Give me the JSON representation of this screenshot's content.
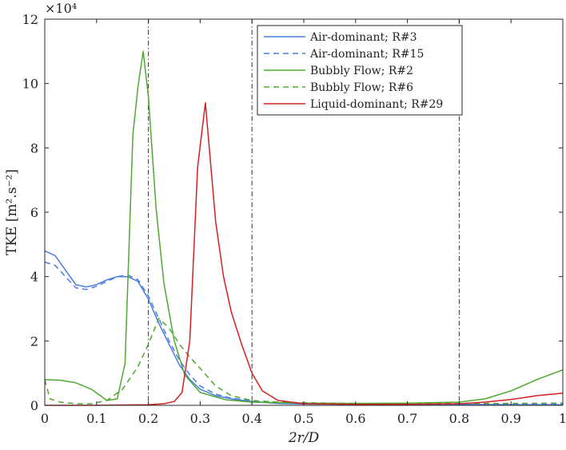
{
  "chart_data": {
    "type": "line",
    "xlabel": "2r/D",
    "ylabel": "TKE [m².s⁻²]",
    "y_multiplier_label": "×10⁴",
    "xlim": [
      0,
      1
    ],
    "ylim": [
      0,
      12
    ],
    "xticks": [
      0,
      0.1,
      0.2,
      0.3,
      0.4,
      0.5,
      0.6,
      0.7,
      0.8,
      0.9,
      1
    ],
    "xtick_labels": [
      "0",
      "0.1",
      "0.2",
      "0.3",
      "0.4",
      "0.5",
      "0.6",
      "0.7",
      "0.8",
      "0.9",
      "1"
    ],
    "yticks": [
      0,
      2,
      4,
      6,
      8,
      10,
      12
    ],
    "ytick_labels": [
      "0",
      "2",
      "4",
      "6",
      "8",
      "10",
      "12"
    ],
    "grid": false,
    "legend_position": "top-right",
    "vertical_lines": [
      0.2,
      0.4,
      0.8
    ],
    "series": [
      {
        "name": "Air-dominant; R#3",
        "color": "#4a7de0",
        "dash": "solid",
        "x": [
          0,
          0.02,
          0.04,
          0.06,
          0.08,
          0.1,
          0.12,
          0.14,
          0.16,
          0.18,
          0.2,
          0.22,
          0.24,
          0.26,
          0.28,
          0.3,
          0.33,
          0.36,
          0.4,
          0.45,
          0.5,
          0.6,
          0.7,
          0.8,
          0.9,
          1.0
        ],
        "y": [
          4.8,
          4.65,
          4.2,
          3.75,
          3.68,
          3.75,
          3.9,
          4.0,
          4.0,
          3.85,
          3.3,
          2.55,
          1.9,
          1.25,
          0.8,
          0.5,
          0.3,
          0.2,
          0.12,
          0.06,
          0.04,
          0.03,
          0.03,
          0.03,
          0.02,
          0.02
        ]
      },
      {
        "name": "Air-dominant; R#15",
        "color": "#4a7de0",
        "dash": "dashed",
        "x": [
          0,
          0.02,
          0.04,
          0.06,
          0.08,
          0.1,
          0.12,
          0.14,
          0.16,
          0.18,
          0.2,
          0.22,
          0.24,
          0.26,
          0.28,
          0.3,
          0.33,
          0.36,
          0.4,
          0.45,
          0.5,
          0.6,
          0.7,
          0.8,
          0.9,
          1.0
        ],
        "y": [
          4.45,
          4.35,
          4.0,
          3.65,
          3.6,
          3.7,
          3.85,
          4.0,
          4.05,
          3.9,
          3.4,
          2.7,
          2.0,
          1.4,
          0.95,
          0.6,
          0.35,
          0.22,
          0.14,
          0.07,
          0.05,
          0.04,
          0.03,
          0.03,
          0.03,
          0.03
        ]
      },
      {
        "name": "Bubbly Flow; R#2",
        "color": "#4fa832",
        "dash": "solid",
        "x": [
          0,
          0.03,
          0.06,
          0.09,
          0.12,
          0.14,
          0.155,
          0.17,
          0.18,
          0.19,
          0.2,
          0.215,
          0.23,
          0.25,
          0.27,
          0.3,
          0.35,
          0.4,
          0.5,
          0.6,
          0.7,
          0.8,
          0.85,
          0.9,
          0.95,
          1.0
        ],
        "y": [
          0.8,
          0.78,
          0.7,
          0.5,
          0.15,
          0.2,
          1.3,
          8.4,
          9.9,
          11.0,
          9.6,
          6.1,
          3.8,
          2.0,
          0.95,
          0.4,
          0.17,
          0.1,
          0.07,
          0.06,
          0.07,
          0.1,
          0.2,
          0.45,
          0.8,
          1.1
        ]
      },
      {
        "name": "Bubbly Flow; R#6",
        "color": "#4fa832",
        "dash": "dashed",
        "x": [
          0,
          0.01,
          0.03,
          0.06,
          0.09,
          0.12,
          0.15,
          0.18,
          0.2,
          0.22,
          0.24,
          0.26,
          0.28,
          0.3,
          0.33,
          0.36,
          0.4,
          0.45,
          0.5,
          0.6,
          0.7,
          0.8,
          0.9,
          1.0
        ],
        "y": [
          0.8,
          0.2,
          0.1,
          0.05,
          0.05,
          0.15,
          0.5,
          1.2,
          1.9,
          2.7,
          2.4,
          1.9,
          1.5,
          1.15,
          0.6,
          0.3,
          0.15,
          0.1,
          0.08,
          0.06,
          0.06,
          0.06,
          0.06,
          0.07
        ]
      },
      {
        "name": "Liquid-dominant; R#29",
        "color": "#d42020",
        "dash": "solid",
        "x": [
          0,
          0.1,
          0.2,
          0.23,
          0.25,
          0.265,
          0.28,
          0.295,
          0.31,
          0.33,
          0.345,
          0.36,
          0.38,
          0.4,
          0.42,
          0.45,
          0.5,
          0.6,
          0.7,
          0.8,
          0.85,
          0.9,
          0.95,
          1.0
        ],
        "y": [
          0,
          0,
          0.02,
          0.05,
          0.12,
          0.4,
          2.0,
          7.4,
          9.4,
          5.7,
          4.0,
          2.9,
          1.9,
          1.0,
          0.45,
          0.15,
          0.05,
          0.03,
          0.03,
          0.05,
          0.1,
          0.18,
          0.3,
          0.38
        ]
      }
    ]
  }
}
